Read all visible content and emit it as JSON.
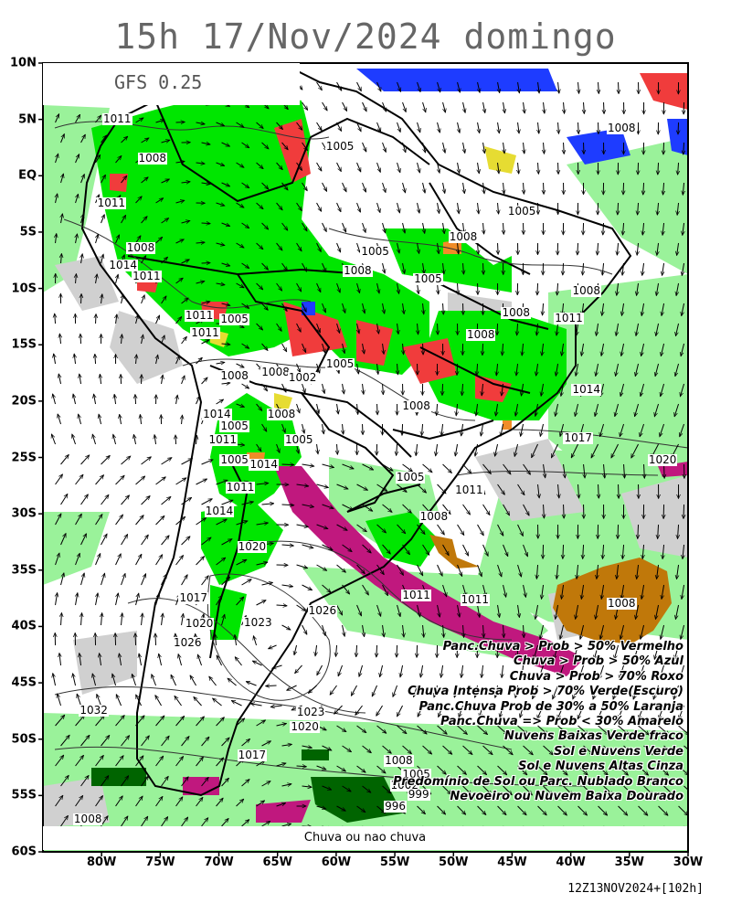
{
  "title": "15h 17/Nov/2024 domingo",
  "model_label": "GFS 0.25",
  "bottom_label": "Chuva ou nao chuva",
  "run_stamp": "12Z13NOV2024+[102h]",
  "y_ticks": [
    "10N",
    "5N",
    "EQ",
    "5S",
    "10S",
    "15S",
    "20S",
    "25S",
    "30S",
    "35S",
    "40S",
    "45S",
    "50S",
    "55S",
    "60S"
  ],
  "x_ticks": [
    "80W",
    "75W",
    "70W",
    "65W",
    "60W",
    "55W",
    "50W",
    "45W",
    "40W",
    "35W",
    "30W"
  ],
  "legend": [
    "Panc.Chuva > Prob > 50% Vermelho",
    "Chuva > Prob > 50% Azul",
    "Chuva > Prob > 70% Roxo",
    "Chuva Intensa Prob > 70% Verde(Escuro)",
    "Panc.Chuva Prob de 30% a 50% Laranja",
    "Panc.Chuva => Prob < 30% Amarelo",
    "Nuvens Baixas Verde fraco",
    "Sol e Nuvens Verde",
    "Sol e Nuvens Altas Cinza",
    "Predomínio de Sol ou Parc. Nublado Branco",
    "Nevoeiro ou Nuvem Baixa Dourado"
  ],
  "isobar_labels": [
    {
      "text": "1011",
      "lon": -79,
      "lat": 5
    },
    {
      "text": "1008",
      "lon": -76,
      "lat": 1.5
    },
    {
      "text": "1011",
      "lon": -79.5,
      "lat": -2.5
    },
    {
      "text": "1008",
      "lon": -77,
      "lat": -6.5
    },
    {
      "text": "1014",
      "lon": -78.5,
      "lat": -8
    },
    {
      "text": "1011",
      "lon": -76.5,
      "lat": -9
    },
    {
      "text": "1011",
      "lon": -72,
      "lat": -12.5
    },
    {
      "text": "1005",
      "lon": -69,
      "lat": -12.8
    },
    {
      "text": "1008",
      "lon": -69,
      "lat": -17.8
    },
    {
      "text": "1008",
      "lon": -65.5,
      "lat": -17.5
    },
    {
      "text": "1002",
      "lon": -63.2,
      "lat": -18
    },
    {
      "text": "1005",
      "lon": -60,
      "lat": -16.8
    },
    {
      "text": "1014",
      "lon": -70.5,
      "lat": -21.2
    },
    {
      "text": "1008",
      "lon": -65,
      "lat": -21.2
    },
    {
      "text": "1005",
      "lon": -69,
      "lat": -22.3
    },
    {
      "text": "1011",
      "lon": -70,
      "lat": -23.5
    },
    {
      "text": "1005",
      "lon": -63.5,
      "lat": -23.5
    },
    {
      "text": "1005",
      "lon": -69,
      "lat": -25.3
    },
    {
      "text": "1014",
      "lon": -66.5,
      "lat": -25.7
    },
    {
      "text": "1011",
      "lon": -68.5,
      "lat": -27.7
    },
    {
      "text": "1014",
      "lon": -70.3,
      "lat": -29.8
    },
    {
      "text": "1020",
      "lon": -67.5,
      "lat": -33
    },
    {
      "text": "1017",
      "lon": -72.5,
      "lat": -37.5
    },
    {
      "text": "1020",
      "lon": -72,
      "lat": -39.8
    },
    {
      "text": "1023",
      "lon": -67,
      "lat": -39.7
    },
    {
      "text": "1026",
      "lon": -61.5,
      "lat": -38.7
    },
    {
      "text": "1026",
      "lon": -73,
      "lat": -41.5
    },
    {
      "text": "1032",
      "lon": -81,
      "lat": -47.5
    },
    {
      "text": "1023",
      "lon": -62.5,
      "lat": -47.7
    },
    {
      "text": "1020",
      "lon": -63,
      "lat": -49
    },
    {
      "text": "1017",
      "lon": -67.5,
      "lat": -51.5
    },
    {
      "text": "1008",
      "lon": -55,
      "lat": -52
    },
    {
      "text": "1005",
      "lon": -53.5,
      "lat": -53.2
    },
    {
      "text": "1002",
      "lon": -54.5,
      "lat": -54.2
    },
    {
      "text": "999",
      "lon": -53,
      "lat": -55
    },
    {
      "text": "996",
      "lon": -55,
      "lat": -56
    },
    {
      "text": "1008",
      "lon": -81.5,
      "lat": -57.2
    },
    {
      "text": "1005",
      "lon": -60,
      "lat": 2.5
    },
    {
      "text": "1005",
      "lon": -57,
      "lat": -6.8
    },
    {
      "text": "1008",
      "lon": -58.5,
      "lat": -8.5
    },
    {
      "text": "1005",
      "lon": -52.5,
      "lat": -9.2
    },
    {
      "text": "1008",
      "lon": -49.5,
      "lat": -5.5
    },
    {
      "text": "1005",
      "lon": -44.5,
      "lat": -3.2
    },
    {
      "text": "1008",
      "lon": -39,
      "lat": -10.3
    },
    {
      "text": "1011",
      "lon": -40.5,
      "lat": -12.7
    },
    {
      "text": "1008",
      "lon": -45,
      "lat": -12.2
    },
    {
      "text": "1014",
      "lon": -39,
      "lat": -19
    },
    {
      "text": "1017",
      "lon": -39.7,
      "lat": -23.3
    },
    {
      "text": "1020",
      "lon": -32.5,
      "lat": -25.3
    },
    {
      "text": "1008",
      "lon": -53.5,
      "lat": -20.5
    },
    {
      "text": "1005",
      "lon": -54,
      "lat": -26.8
    },
    {
      "text": "1008",
      "lon": -52,
      "lat": -30.3
    },
    {
      "text": "1011",
      "lon": -49,
      "lat": -28
    },
    {
      "text": "1011",
      "lon": -53.5,
      "lat": -37.3
    },
    {
      "text": "1011",
      "lon": -48.5,
      "lat": -37.7
    },
    {
      "text": "1008",
      "lon": -36,
      "lat": 4.2
    },
    {
      "text": "1008",
      "lon": -36,
      "lat": -38
    },
    {
      "text": "1011",
      "lon": -71.5,
      "lat": -14
    },
    {
      "text": "1008",
      "lon": -48,
      "lat": -14.2
    }
  ],
  "colors": {
    "ocean_green": "#9af29a",
    "sun_clouds_green": "#00e600",
    "low_cloud_green": "#9af29a",
    "gray": "#d0d0d0",
    "red": "#f03c3c",
    "blue": "#1e3cff",
    "purple": "#c0187e",
    "dark_green": "#006400",
    "orange": "#f08c28",
    "yellow": "#e6dc32",
    "gold": "#c0780a",
    "white": "#ffffff"
  }
}
